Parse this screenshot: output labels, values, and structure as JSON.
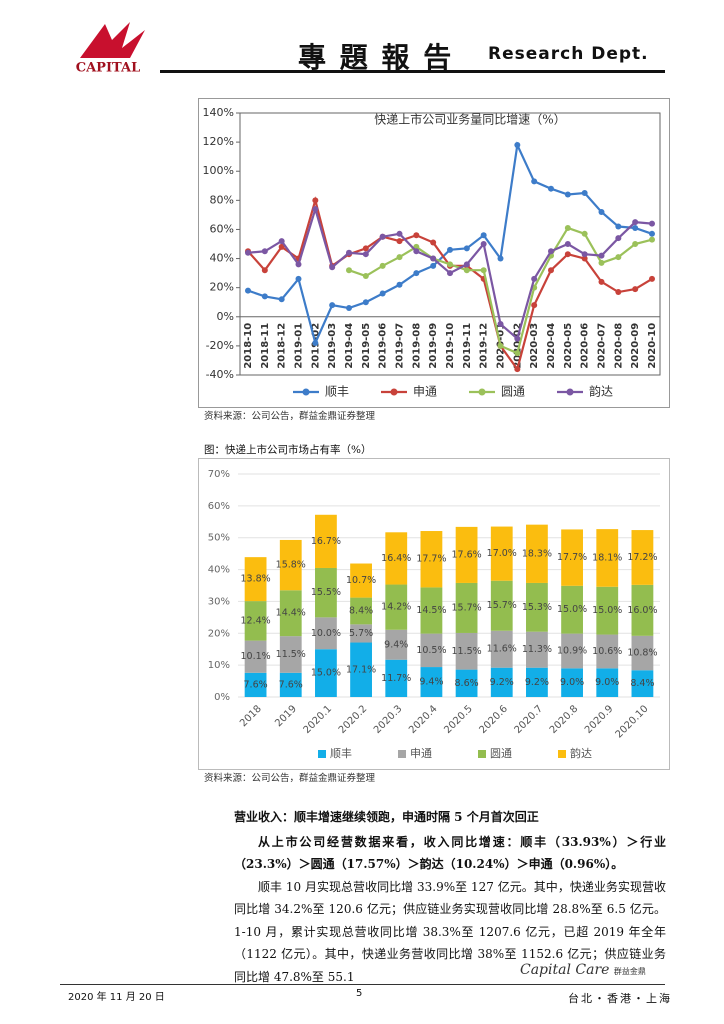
{
  "header": {
    "logo_text": "CAPITAL",
    "title": "專 題 報 告",
    "dept": "Research Dept."
  },
  "chart_data": [
    {
      "type": "line",
      "title": "快递上市公司业务量同比增速（%）",
      "categories": [
        "2018-10",
        "2018-11",
        "2018-12",
        "2019-01",
        "2019-02",
        "2019-03",
        "2019-04",
        "2019-05",
        "2019-06",
        "2019-07",
        "2019-08",
        "2019-09",
        "2019-10",
        "2019-11",
        "2019-12",
        "2020-01",
        "2020-02",
        "2020-03",
        "2020-04",
        "2020-05",
        "2020-06",
        "2020-07",
        "2020-08",
        "2020-09",
        "2020-10"
      ],
      "series": [
        {
          "name": "顺丰",
          "color": "#3d7cc9",
          "values": [
            18,
            14,
            12,
            26,
            -18,
            8,
            6,
            10,
            16,
            22,
            30,
            35,
            46,
            47,
            56,
            40,
            118,
            93,
            88,
            84,
            85,
            72,
            62,
            61,
            57
          ]
        },
        {
          "name": "申通",
          "color": "#c8423a",
          "values": [
            45,
            32,
            48,
            40,
            80,
            35,
            43,
            47,
            55,
            52,
            56,
            51,
            35,
            35,
            26,
            -20,
            -36,
            8,
            32,
            43,
            40,
            24,
            17,
            19,
            26
          ]
        },
        {
          "name": "圆通",
          "color": "#9bc15a",
          "values": [
            null,
            null,
            null,
            null,
            null,
            null,
            32,
            28,
            35,
            41,
            48,
            40,
            36,
            32,
            32,
            -20,
            -25,
            20,
            42,
            61,
            57,
            37,
            41,
            50,
            53
          ]
        },
        {
          "name": "韵达",
          "color": "#7b57a3",
          "values": [
            44,
            45,
            52,
            36,
            74,
            34,
            44,
            43,
            55,
            57,
            45,
            40,
            30,
            36,
            50,
            -5,
            -15,
            26,
            45,
            50,
            43,
            42,
            54,
            65,
            64
          ]
        }
      ],
      "ylim": [
        -40,
        140
      ],
      "yticks": [
        {
          "value": -40,
          "label": "-40%"
        },
        {
          "value": -20,
          "label": "-20%"
        },
        {
          "value": 0,
          "label": "0%"
        },
        {
          "value": 20,
          "label": "20%"
        },
        {
          "value": 40,
          "label": "40%"
        },
        {
          "value": 60,
          "label": "60%"
        },
        {
          "value": 80,
          "label": "80%"
        },
        {
          "value": 100,
          "label": "100%"
        },
        {
          "value": 120,
          "label": "120%"
        },
        {
          "value": 140,
          "label": "140%"
        }
      ],
      "legend": "bottom",
      "source": "资料来源：公司公告，群益金鼎证券整理"
    },
    {
      "type": "stacked_bar",
      "title": "图：快递上市公司市场占有率（%）",
      "categories": [
        "2018",
        "2019",
        "2020.1",
        "2020.2",
        "2020.3",
        "2020.4",
        "2020.5",
        "2020.6",
        "2020.7",
        "2020.8",
        "2020.9",
        "2020.10"
      ],
      "series": [
        {
          "name": "顺丰",
          "color": "#12aee8",
          "values": [
            7.6,
            7.6,
            15.0,
            17.1,
            11.7,
            9.4,
            8.6,
            9.2,
            9.2,
            9.0,
            9.0,
            8.4
          ],
          "value_labels": [
            "7.6%",
            "7.6%",
            "15.0%",
            "17.1%",
            "11.7%",
            "9.4%",
            "8.6%",
            "9.2%",
            "9.2%",
            "9.0%",
            "9.0%",
            "8.4%"
          ]
        },
        {
          "name": "申通",
          "color": "#a6a6a6",
          "values": [
            10.1,
            11.5,
            10.0,
            5.7,
            9.4,
            10.5,
            11.5,
            11.6,
            11.3,
            10.9,
            10.6,
            10.8
          ],
          "value_labels": [
            "10.1%",
            "11.5%",
            "10.0%",
            "5.7%",
            "9.4%",
            "10.5%",
            "11.5%",
            "11.6%",
            "11.3%",
            "10.9%",
            "10.6%",
            "10.8%"
          ]
        },
        {
          "name": "圆通",
          "color": "#93bd4f",
          "values": [
            12.4,
            14.4,
            15.5,
            8.4,
            14.2,
            14.5,
            15.7,
            15.7,
            15.3,
            15.0,
            15.0,
            16.0
          ],
          "value_labels": [
            "12.4%",
            "14.4%",
            "15.5%",
            "8.4%",
            "14.2%",
            "14.5%",
            "15.7%",
            "15.7%",
            "15.3%",
            "15.0%",
            "15.0%",
            "16.0%"
          ]
        },
        {
          "name": "韵达",
          "color": "#fbbd0f",
          "values": [
            13.8,
            15.8,
            16.7,
            10.7,
            16.4,
            17.7,
            17.6,
            17.0,
            18.3,
            17.7,
            18.1,
            17.2
          ],
          "value_labels": [
            "13.8%",
            "15.8%",
            "16.7%",
            "10.7%",
            "16.4%",
            "17.7%",
            "17.6%",
            "17.0%",
            "18.3%",
            "17.7%",
            "18.1%",
            "17.2%"
          ]
        }
      ],
      "ylim": [
        0,
        70
      ],
      "yticks": [
        {
          "value": 0,
          "label": "0%"
        },
        {
          "value": 10,
          "label": "10%"
        },
        {
          "value": 20,
          "label": "20%"
        },
        {
          "value": 30,
          "label": "30%"
        },
        {
          "value": 40,
          "label": "40%"
        },
        {
          "value": 50,
          "label": "50%"
        },
        {
          "value": 60,
          "label": "60%"
        },
        {
          "value": 70,
          "label": "70%"
        }
      ],
      "legend": "bottom",
      "source": "资料来源：公司公告，群益金鼎证券整理"
    }
  ],
  "body": {
    "heading": "营业收入：顺丰增速继续领跑，申通时隔 5 个月首次回正",
    "paragraphs": [
      "从上市公司经营数据来看，收入同比增速：顺丰（33.93%）＞行业（23.3%）＞圆通（17.57%）＞韵达（10.24%）＞申通（0.96%）。",
      "顺丰 10 月实现总营收同比增 33.9%至 127 亿元。其中，快递业务实现营收同比增 34.2%至 120.6 亿元；供应链业务实现营收同比增 28.8%至 6.5 亿元。1-10 月，累计实现总营收同比增 38.3%至 1207.6 亿元，已超 2019 年全年（1122 亿元）。其中，快递业务营收同比增 38%至 1152.6 亿元；供应链业务同比增 47.8%至 55.1"
    ]
  },
  "footer": {
    "date": "2020 年 11 月 20 日",
    "page": "5",
    "brand": "Capital Care",
    "brand_cn": "群益金鼎",
    "cities": "台北・香港・上海"
  }
}
